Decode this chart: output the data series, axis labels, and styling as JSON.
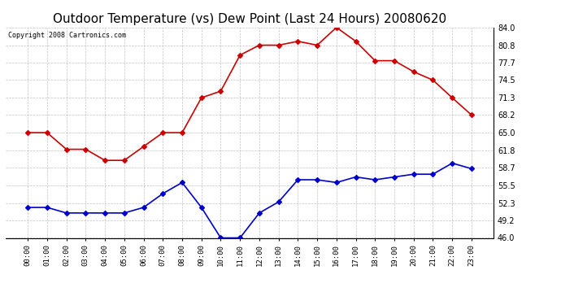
{
  "title": "Outdoor Temperature (vs) Dew Point (Last 24 Hours) 20080620",
  "copyright_text": "Copyright 2008 Cartronics.com",
  "x_labels": [
    "00:00",
    "01:00",
    "02:00",
    "03:00",
    "04:00",
    "05:00",
    "06:00",
    "07:00",
    "08:00",
    "09:00",
    "10:00",
    "11:00",
    "12:00",
    "13:00",
    "14:00",
    "15:00",
    "16:00",
    "17:00",
    "18:00",
    "19:00",
    "20:00",
    "21:00",
    "22:00",
    "23:00"
  ],
  "temp_data": [
    65.0,
    65.0,
    62.0,
    62.0,
    60.0,
    60.0,
    62.5,
    65.0,
    65.0,
    71.3,
    72.5,
    79.0,
    80.8,
    80.8,
    81.5,
    80.8,
    84.0,
    81.5,
    78.0,
    78.0,
    76.0,
    74.5,
    71.3,
    68.2
  ],
  "dew_data": [
    51.5,
    51.5,
    50.5,
    50.5,
    50.5,
    50.5,
    51.5,
    54.0,
    56.0,
    51.5,
    46.0,
    46.0,
    50.5,
    52.5,
    56.5,
    56.5,
    56.0,
    57.0,
    56.5,
    57.0,
    57.5,
    57.5,
    59.5,
    58.5
  ],
  "temp_color": "#cc0000",
  "dew_color": "#0000cc",
  "background_color": "#ffffff",
  "plot_bg_color": "#ffffff",
  "grid_color": "#bbbbbb",
  "ylim": [
    46.0,
    84.0
  ],
  "yticks": [
    46.0,
    49.2,
    52.3,
    55.5,
    58.7,
    61.8,
    65.0,
    68.2,
    71.3,
    74.5,
    77.7,
    80.8,
    84.0
  ],
  "title_fontsize": 11,
  "marker": "D",
  "marker_size": 3,
  "line_width": 1.2
}
